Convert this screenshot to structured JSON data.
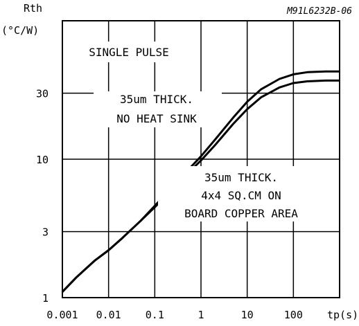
{
  "chart_data": {
    "type": "line",
    "title": "",
    "ylabel": "Rth",
    "yunit": "(°C/W)",
    "xlabel": "tp(s)",
    "figure_code": "M91L6232B-06",
    "x_scale": "log",
    "y_scale": "log",
    "xlim": [
      0.001,
      1000
    ],
    "ylim": [
      1,
      100
    ],
    "grid": true,
    "x_ticks": [
      0.001,
      0.01,
      0.1,
      1,
      10,
      100
    ],
    "x_tick_labels": [
      "0.001",
      "0.01",
      "0.1",
      "1",
      "10",
      "100"
    ],
    "y_ticks": [
      1,
      3,
      10,
      30
    ],
    "y_tick_labels": [
      "1",
      "3",
      "10",
      "30"
    ],
    "series": [
      {
        "name": "35um THICK. NO HEAT SINK",
        "x": [
          0.001,
          0.002,
          0.005,
          0.01,
          0.02,
          0.05,
          0.1,
          0.2,
          0.5,
          1,
          2,
          5,
          10,
          20,
          50,
          100,
          200,
          500,
          1000
        ],
        "y": [
          1.1,
          1.4,
          1.85,
          2.2,
          2.7,
          3.6,
          4.6,
          5.9,
          8.2,
          10.5,
          13.8,
          20,
          26,
          32,
          38,
          41,
          42.5,
          43,
          43
        ]
      },
      {
        "name": "35um THICK. 4x4 SQ.CM ON BOARD COPPER AREA",
        "x": [
          0.001,
          0.002,
          0.005,
          0.01,
          0.02,
          0.05,
          0.1,
          0.2,
          0.5,
          1,
          2,
          5,
          10,
          20,
          50,
          100,
          200,
          500,
          1000
        ],
        "y": [
          1.1,
          1.4,
          1.85,
          2.2,
          2.7,
          3.6,
          4.5,
          5.7,
          7.8,
          9.8,
          12.6,
          18,
          23,
          28,
          33,
          35.5,
          36.5,
          37,
          37
        ]
      }
    ],
    "annotations": [
      "SINGLE PULSE",
      "35um THICK.",
      "NO HEAT SINK",
      "35um THICK.",
      "4x4 SQ.CM ON",
      "BOARD COPPER AREA"
    ]
  }
}
